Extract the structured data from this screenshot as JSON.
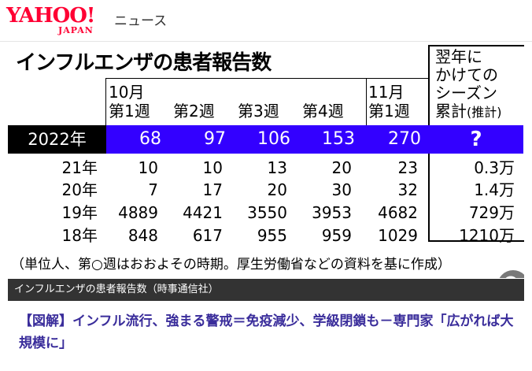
{
  "header": {
    "logo_main": "YAHOO!",
    "logo_sub": "JAPAN",
    "section": "ニュース"
  },
  "figure": {
    "title": "インフルエンザの患者報告数",
    "columns": [
      {
        "top": "10月",
        "bottom": "第1週"
      },
      {
        "top": "",
        "bottom": "第2週"
      },
      {
        "top": "",
        "bottom": "第3週"
      },
      {
        "top": "",
        "bottom": "第4週"
      },
      {
        "top": "11月",
        "bottom": "第1週"
      }
    ],
    "cumulative_header": {
      "lines": [
        "翌年に",
        "かけての",
        "シーズン"
      ],
      "last": "累計",
      "last_small": "(推計)"
    },
    "rows": [
      {
        "label": "2022年",
        "values": [
          "68",
          "97",
          "106",
          "153",
          "270"
        ],
        "cumulative": "?"
      },
      {
        "label": "21年",
        "values": [
          "10",
          "10",
          "13",
          "20",
          "23"
        ],
        "cumulative": "0.3万"
      },
      {
        "label": "20年",
        "values": [
          "7",
          "17",
          "20",
          "30",
          "32"
        ],
        "cumulative": "1.4万"
      },
      {
        "label": "19年",
        "values": [
          "4889",
          "4421",
          "3550",
          "3953",
          "4682"
        ],
        "cumulative": "729万"
      },
      {
        "label": "18年",
        "values": [
          "848",
          "617",
          "955",
          "959",
          "1029"
        ],
        "cumulative": "1210万"
      }
    ],
    "note": "（単位人、第○週はおおよその時期。厚生労働省などの資料を基に作成）"
  },
  "caption": "インフルエンザの患者報告数（時事通信社）",
  "headline": "【図解】インフル流行、強まる警戒＝免疫減少、学級閉鎖も－専門家「広がれば大規模に」",
  "colors": {
    "brand": "#ff0033",
    "highlight_row": "#3300ff",
    "caption_bg": "#333333",
    "headline": "#3a2d9b"
  }
}
